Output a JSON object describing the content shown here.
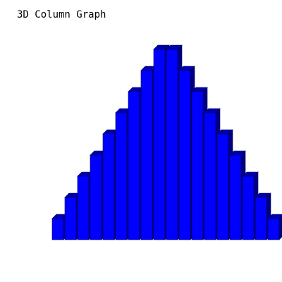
{
  "chart_data": {
    "type": "bar",
    "title": "3D Column Graph",
    "categories": [
      "",
      "",
      "",
      "",
      "",
      "",
      "",
      "",
      "",
      "",
      "",
      "",
      "",
      "",
      "",
      "",
      "",
      ""
    ],
    "values": [
      1,
      2,
      3,
      4,
      5,
      6,
      7,
      8,
      9,
      9,
      8,
      7,
      6,
      5,
      4,
      3,
      2,
      1
    ],
    "xlabel": "",
    "ylabel": "",
    "ylim": [
      0,
      9
    ],
    "grid": false,
    "axes_visible": false,
    "three_d": true,
    "colors": {
      "front": "#0000ff",
      "top": "#0000aa",
      "side": "#000080",
      "outline": "#000060"
    }
  }
}
